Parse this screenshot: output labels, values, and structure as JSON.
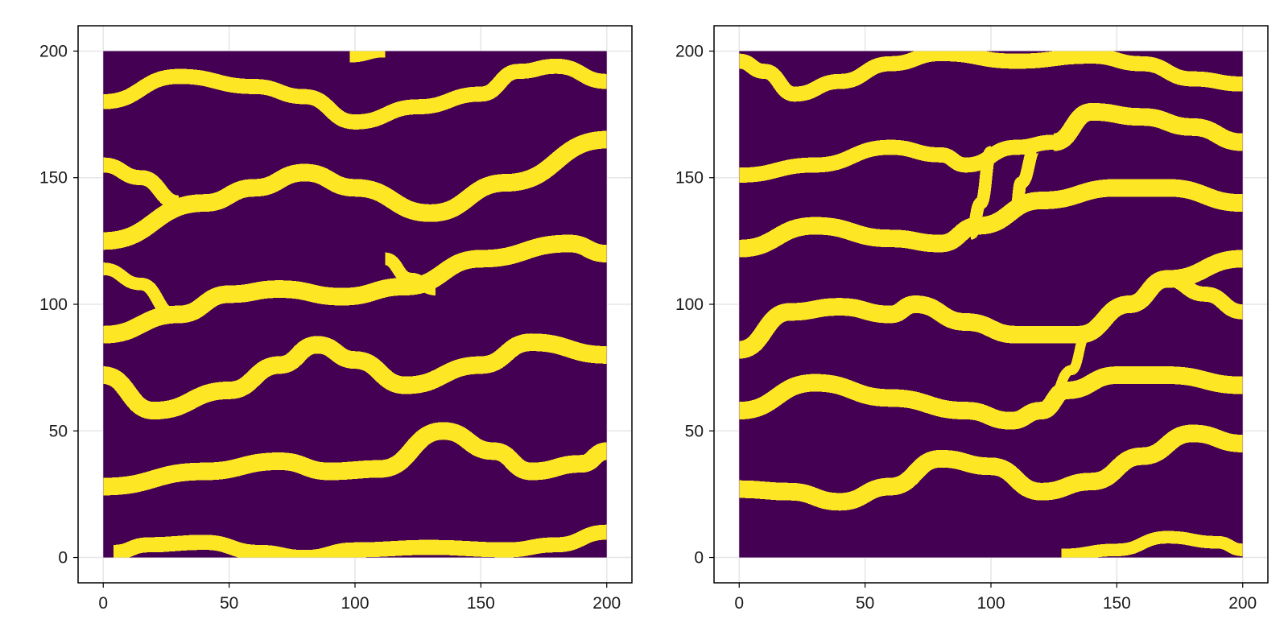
{
  "chart_data": [
    {
      "type": "heatmap",
      "panel": "left",
      "xlim": [
        -10,
        210
      ],
      "ylim": [
        -10,
        210
      ],
      "data_extent": [
        0,
        200
      ],
      "xticks": [
        0,
        50,
        100,
        150,
        200
      ],
      "yticks": [
        0,
        50,
        100,
        150,
        200
      ],
      "xtick_labels": [
        "0",
        "50",
        "100",
        "150",
        "200"
      ],
      "ytick_labels": [
        "0",
        "50",
        "100",
        "150",
        "200"
      ],
      "grid": true,
      "colormap": {
        "low": "#440154",
        "high": "#fde725"
      },
      "values_description_free": true,
      "channels": [
        {
          "pts": [
            [
              0,
              180
            ],
            [
              30,
              190
            ],
            [
              60,
              186
            ],
            [
              80,
              182
            ],
            [
              100,
              172
            ],
            [
              125,
              178
            ],
            [
              150,
              183
            ],
            [
              165,
              192
            ],
            [
              180,
              194
            ],
            [
              200,
              188
            ]
          ],
          "width": 6
        },
        {
          "pts": [
            [
              0,
              125
            ],
            [
              40,
              140
            ],
            [
              60,
              146
            ],
            [
              80,
              152
            ],
            [
              100,
              146
            ],
            [
              130,
              136
            ],
            [
              160,
              148
            ],
            [
              200,
              165
            ]
          ],
          "width": 7
        },
        {
          "pts": [
            [
              0,
              155
            ],
            [
              15,
              150
            ],
            [
              30,
              140
            ]
          ],
          "width": 6
        },
        {
          "pts": [
            [
              0,
              88
            ],
            [
              30,
              96
            ],
            [
              50,
              104
            ],
            [
              70,
              106
            ],
            [
              95,
              103
            ],
            [
              120,
              107
            ],
            [
              150,
              118
            ],
            [
              185,
              124
            ],
            [
              200,
              120
            ]
          ],
          "width": 7
        },
        {
          "pts": [
            [
              0,
              114
            ],
            [
              15,
              108
            ],
            [
              28,
              96
            ]
          ],
          "width": 5
        },
        {
          "pts": [
            [
              112,
              118
            ],
            [
              122,
              110
            ],
            [
              132,
              106
            ]
          ],
          "width": 5
        },
        {
          "pts": [
            [
              0,
              72
            ],
            [
              20,
              58
            ],
            [
              50,
              66
            ],
            [
              70,
              76
            ],
            [
              85,
              84
            ],
            [
              100,
              78
            ],
            [
              120,
              68
            ],
            [
              150,
              76
            ],
            [
              170,
              85
            ],
            [
              200,
              80
            ]
          ],
          "width": 7
        },
        {
          "pts": [
            [
              0,
              28
            ],
            [
              40,
              34
            ],
            [
              70,
              38
            ],
            [
              90,
              34
            ],
            [
              110,
              35
            ],
            [
              135,
              50
            ],
            [
              155,
              42
            ],
            [
              170,
              34
            ],
            [
              190,
              37
            ],
            [
              200,
              42
            ]
          ],
          "width": 7
        },
        {
          "pts": [
            [
              4,
              2
            ],
            [
              18,
              5
            ],
            [
              40,
              6
            ],
            [
              62,
              2
            ],
            [
              80,
              0
            ],
            [
              100,
              3
            ],
            [
              130,
              4
            ],
            [
              160,
              3
            ],
            [
              180,
              5
            ],
            [
              200,
              10
            ]
          ],
          "width": 6
        },
        {
          "pts": [
            [
              98,
              198
            ],
            [
              112,
              200
            ]
          ],
          "width": 5
        }
      ]
    },
    {
      "type": "heatmap",
      "panel": "right",
      "xlim": [
        -10,
        210
      ],
      "ylim": [
        -10,
        210
      ],
      "data_extent": [
        0,
        200
      ],
      "xticks": [
        0,
        50,
        100,
        150,
        200
      ],
      "yticks": [
        0,
        50,
        100,
        150,
        200
      ],
      "xtick_labels": [
        "0",
        "50",
        "100",
        "150",
        "200"
      ],
      "ytick_labels": [
        "0",
        "50",
        "100",
        "150",
        "200"
      ],
      "grid": true,
      "colormap": {
        "low": "#440154",
        "high": "#fde725"
      },
      "channels": [
        {
          "pts": [
            [
              0,
              196
            ],
            [
              10,
              192
            ],
            [
              22,
              183
            ],
            [
              40,
              188
            ],
            [
              60,
              195
            ],
            [
              80,
              199
            ],
            [
              110,
              196
            ],
            [
              140,
              198
            ],
            [
              160,
              195
            ],
            [
              180,
              189
            ],
            [
              200,
              187
            ]
          ],
          "width": 6
        },
        {
          "pts": [
            [
              0,
              151
            ],
            [
              30,
              155
            ],
            [
              60,
              162
            ],
            [
              80,
              159
            ],
            [
              90,
              155
            ],
            [
              110,
              162
            ],
            [
              125,
              164
            ]
          ],
          "width": 6
        },
        {
          "pts": [
            [
              125,
              164
            ],
            [
              140,
              176
            ],
            [
              160,
              174
            ],
            [
              180,
              170
            ],
            [
              200,
              164
            ]
          ],
          "width": 7
        },
        {
          "pts": [
            [
              0,
              122
            ],
            [
              30,
              131
            ],
            [
              60,
              126
            ],
            [
              80,
              124
            ],
            [
              95,
              131
            ],
            [
              120,
              141
            ],
            [
              150,
              146
            ],
            [
              170,
              146
            ],
            [
              200,
              140
            ]
          ],
          "width": 7
        },
        {
          "pts": [
            [
              100,
              160
            ],
            [
              96,
              140
            ],
            [
              92,
              128
            ]
          ],
          "width": 5
        },
        {
          "pts": [
            [
              118,
              162
            ],
            [
              112,
              148
            ],
            [
              110,
              138
            ]
          ],
          "width": 5
        },
        {
          "pts": [
            [
              0,
              82
            ],
            [
              20,
              97
            ],
            [
              40,
              99
            ],
            [
              60,
              96
            ],
            [
              70,
              100
            ],
            [
              90,
              93
            ],
            [
              110,
              88
            ],
            [
              135,
              88
            ],
            [
              155,
              100
            ],
            [
              170,
              110
            ],
            [
              200,
              118
            ]
          ],
          "width": 7
        },
        {
          "pts": [
            [
              170,
              110
            ],
            [
              185,
              104
            ],
            [
              200,
              97
            ]
          ],
          "width": 6
        },
        {
          "pts": [
            [
              0,
              58
            ],
            [
              30,
              69
            ],
            [
              60,
              63
            ],
            [
              90,
              58
            ],
            [
              108,
              54
            ],
            [
              120,
              58
            ],
            [
              130,
              66
            ],
            [
              150,
              72
            ],
            [
              170,
              72
            ],
            [
              200,
              68
            ]
          ],
          "width": 7
        },
        {
          "pts": [
            [
              122,
              58
            ],
            [
              132,
              74
            ],
            [
              138,
              88
            ]
          ],
          "width": 4
        },
        {
          "pts": [
            [
              0,
              27
            ],
            [
              20,
              26
            ],
            [
              40,
              22
            ],
            [
              60,
              28
            ],
            [
              80,
              39
            ],
            [
              100,
              36
            ],
            [
              120,
              26
            ],
            [
              140,
              30
            ],
            [
              160,
              40
            ],
            [
              180,
              49
            ],
            [
              200,
              45
            ]
          ],
          "width": 7
        },
        {
          "pts": [
            [
              128,
              1
            ],
            [
              150,
              3
            ],
            [
              170,
              8
            ],
            [
              190,
              6
            ],
            [
              200,
              3
            ]
          ],
          "width": 5
        }
      ]
    }
  ]
}
